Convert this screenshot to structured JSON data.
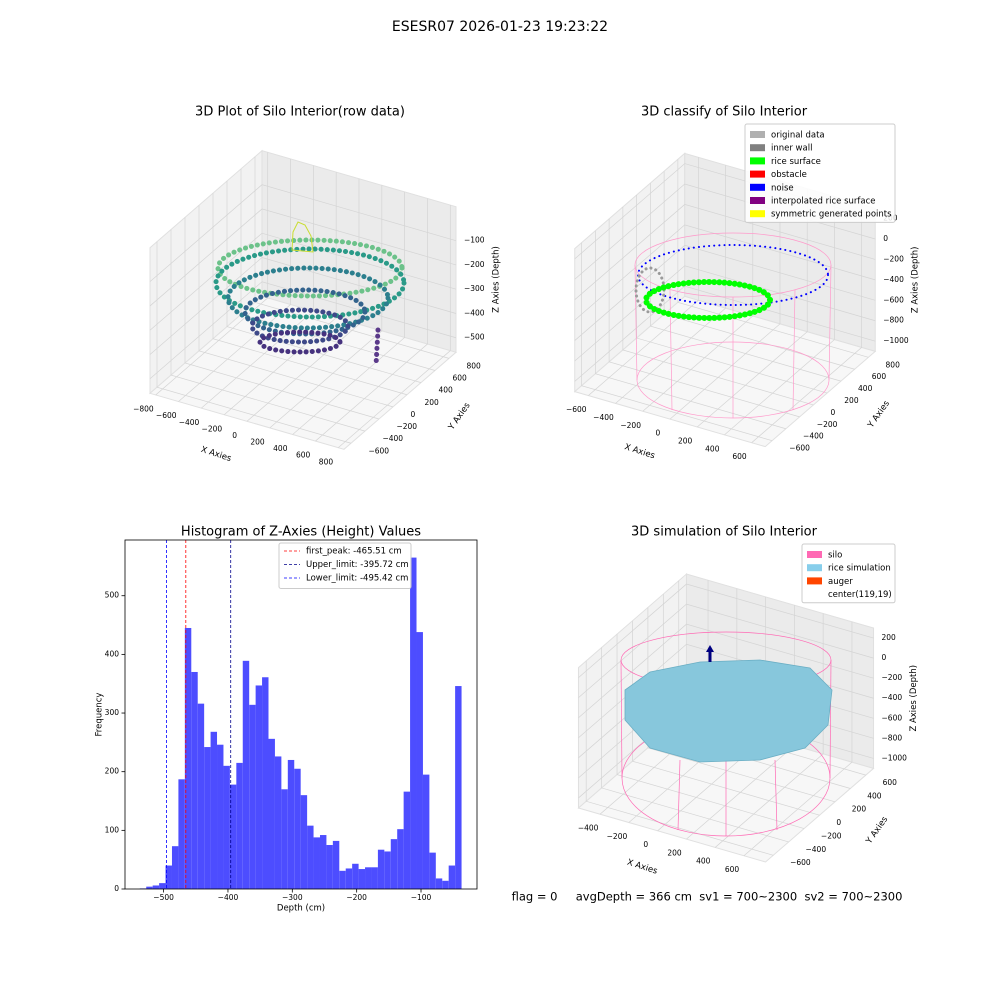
{
  "title": "ESESR07 2026-01-23 19:23:22",
  "chart_data": [
    {
      "type": "scatter3d",
      "title": "3D Plot of Silo Interior(row data)",
      "xlabel": "X Axies",
      "ylabel": "Y Axies",
      "zlabel": "Z Axies (Depth)",
      "xlim": [
        -850,
        850
      ],
      "ylim": [
        -700,
        900
      ],
      "zlim": [
        -560,
        40
      ],
      "xticks": [
        {
          "value": -800,
          "label": "−800"
        },
        {
          "value": -600,
          "label": "−600"
        },
        {
          "value": -400,
          "label": "−400"
        },
        {
          "value": -200,
          "label": "−200"
        },
        0,
        200,
        400,
        600,
        800
      ],
      "yticks": [
        {
          "value": -600,
          "label": "−600"
        },
        {
          "value": -400,
          "label": "−400"
        },
        {
          "value": -200,
          "label": "−200"
        },
        0,
        200,
        400,
        600,
        800
      ],
      "zticks": [
        {
          "value": -100,
          "label": "−100"
        },
        {
          "value": -200,
          "label": "−200"
        },
        {
          "value": -300,
          "label": "−300"
        },
        {
          "value": -400,
          "label": "−400"
        },
        {
          "value": -500,
          "label": "−500"
        }
      ]
    },
    {
      "type": "scatter3d",
      "title": "3D classify of Silo Interior",
      "xlabel": "X Axies",
      "ylabel": "Y Axies",
      "zlabel": "Z Axies (Depth)",
      "xlim": [
        -700,
        700
      ],
      "ylim": [
        -700,
        900
      ],
      "zlim": [
        -1100,
        300
      ],
      "xticks": [
        {
          "value": -600,
          "label": "−600"
        },
        {
          "value": -400,
          "label": "−400"
        },
        {
          "value": -200,
          "label": "−200"
        },
        0,
        200,
        400,
        600
      ],
      "yticks": [
        {
          "value": -600,
          "label": "−600"
        },
        {
          "value": -400,
          "label": "−400"
        },
        {
          "value": -200,
          "label": "−200"
        },
        0,
        200,
        400,
        600,
        800
      ],
      "zticks": [
        200,
        0,
        {
          "value": -200,
          "label": "−200"
        },
        {
          "value": -400,
          "label": "−400"
        },
        {
          "value": -600,
          "label": "−600"
        },
        {
          "value": -800,
          "label": "−800"
        },
        {
          "value": -1000,
          "label": "−1000"
        }
      ],
      "legend": "upper right",
      "series": [
        {
          "name": "original data",
          "color": "#b0b0b0"
        },
        {
          "name": "inner wall",
          "color": "#808080"
        },
        {
          "name": "rice surface",
          "color": "#00ff00"
        },
        {
          "name": "obstacle",
          "color": "#ff0000"
        },
        {
          "name": "noise",
          "color": "#0000ff"
        },
        {
          "name": "interpolated rice surface",
          "color": "#800080"
        },
        {
          "name": "symmetric generated points",
          "color": "#ffff00"
        }
      ]
    },
    {
      "type": "histogram",
      "title": "Histogram of Z-Axies (Height) Values",
      "xlabel": "Depth (cm)",
      "ylabel": "Frequency",
      "color": "#4d4dff",
      "bins": [
        -537,
        -527,
        -517,
        -507,
        -497,
        -487,
        -477,
        -467,
        -457,
        -447,
        -437,
        -427,
        -417,
        -407,
        -397,
        -387,
        -377,
        -367,
        -357,
        -347,
        -337,
        -327,
        -317,
        -307,
        -297,
        -287,
        -277,
        -267,
        -257,
        -247,
        -237,
        -227,
        -217,
        -207,
        -197,
        -187,
        -177,
        -167,
        -157,
        -147,
        -137,
        -127,
        -117,
        -107,
        -97,
        -87,
        -77,
        -67,
        -57,
        -47,
        -37
      ],
      "values": [
        1,
        4,
        6,
        10,
        40,
        73,
        187,
        445,
        370,
        316,
        242,
        268,
        246,
        210,
        178,
        215,
        389,
        314,
        347,
        361,
        256,
        226,
        170,
        220,
        205,
        160,
        108,
        88,
        92,
        75,
        82,
        31,
        35,
        43,
        34,
        37,
        37,
        67,
        64,
        85,
        102,
        166,
        565,
        438,
        195,
        62,
        18,
        14,
        40,
        346
      ],
      "xlim": [
        -560,
        -13
      ],
      "ylim": [
        0,
        595
      ],
      "xticks": [
        {
          "value": -500,
          "label": "−500"
        },
        {
          "value": -400,
          "label": "−400"
        },
        {
          "value": -300,
          "label": "−300"
        },
        {
          "value": -200,
          "label": "−200"
        },
        {
          "value": -100,
          "label": "−100"
        }
      ],
      "yticks": [
        0,
        100,
        200,
        300,
        400,
        500
      ],
      "legend": "upper center",
      "vlines": [
        {
          "name": "first_peak: -465.51 cm",
          "value": -465.51,
          "color": "#ff0000"
        },
        {
          "name": "Upper_limit: -395.72 cm",
          "value": -395.72,
          "color": "#00008b"
        },
        {
          "name": "Lower_limit: -495.42 cm",
          "value": -495.42,
          "color": "#0000ff"
        }
      ]
    },
    {
      "type": "surface3d",
      "title": "3D simulation of Silo Interior",
      "xlabel": "X Axies",
      "ylabel": "Y Axies",
      "zlabel": "Z Axies (Depth)",
      "xlim": [
        -550,
        750
      ],
      "ylim": [
        -700,
        700
      ],
      "zlim": [
        -1100,
        300
      ],
      "xticks": [
        {
          "value": -400,
          "label": "−400"
        },
        {
          "value": -200,
          "label": "−200"
        },
        0,
        200,
        400,
        600
      ],
      "yticks": [
        {
          "value": -600,
          "label": "−600"
        },
        {
          "value": -400,
          "label": "−400"
        },
        {
          "value": -200,
          "label": "−200"
        },
        0,
        200,
        400,
        600
      ],
      "zticks": [
        200,
        0,
        {
          "value": -200,
          "label": "−200"
        },
        {
          "value": -400,
          "label": "−400"
        },
        {
          "value": -600,
          "label": "−600"
        },
        {
          "value": -800,
          "label": "−800"
        },
        {
          "value": -1000,
          "label": "−1000"
        }
      ],
      "legend": "upper right",
      "series": [
        {
          "name": "silo",
          "color": "#ff69b4"
        },
        {
          "name": "rice simulation",
          "color": "#87ceeb"
        },
        {
          "name": "auger",
          "color": "#ff4500"
        },
        {
          "name": "center(119,19)",
          "color": "#ffffff"
        }
      ],
      "annotation": "flag = 0     avgDepth = 366 cm  sv1 = 700~2300  sv2 = 700~2300"
    }
  ]
}
